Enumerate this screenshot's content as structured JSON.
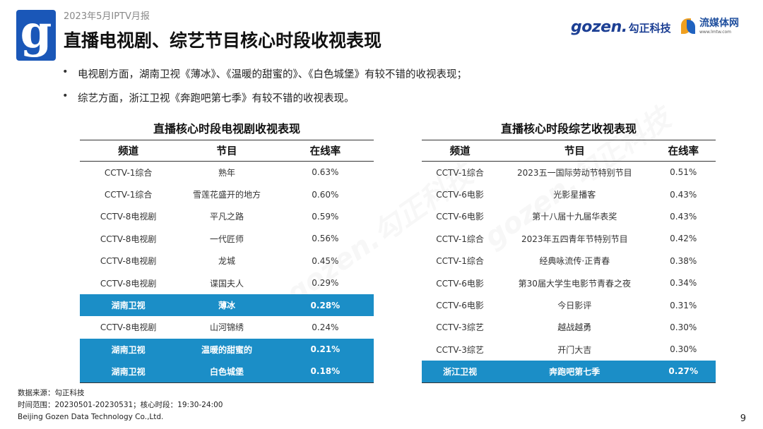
{
  "header": {
    "report_label": "2023年5月IPTV月报",
    "title": "直播电视剧、综艺节目核心时段收视表现",
    "logo_letter": "g",
    "brand_gozen_latin": "gozen.",
    "brand_gozen_cn": "勾正科技",
    "brand_lmtw_cn": "流媒体网",
    "brand_lmtw_url": "www.lmtw.com"
  },
  "bullets": [
    "电视剧方面，湖南卫视《薄冰》、《温暖的甜蜜的》、《白色城堡》有较不错的收视表现；",
    "综艺方面，浙江卫视《奔跑吧第七季》有较不错的收视表现。"
  ],
  "watermark": "gozen.勾正科技",
  "drama_table": {
    "title": "直播核心时段电视剧收视表现",
    "headers": [
      "频道",
      "节目",
      "在线率"
    ],
    "rows": [
      {
        "channel": "CCTV-1综合",
        "program": "熟年",
        "rate": "0.63%",
        "highlight": false
      },
      {
        "channel": "CCTV-1综合",
        "program": "雪莲花盛开的地方",
        "rate": "0.60%",
        "highlight": false
      },
      {
        "channel": "CCTV-8电视剧",
        "program": "平凡之路",
        "rate": "0.59%",
        "highlight": false
      },
      {
        "channel": "CCTV-8电视剧",
        "program": "一代匠师",
        "rate": "0.56%",
        "highlight": false
      },
      {
        "channel": "CCTV-8电视剧",
        "program": "龙城",
        "rate": "0.45%",
        "highlight": false
      },
      {
        "channel": "CCTV-8电视剧",
        "program": "谍国夫人",
        "rate": "0.29%",
        "highlight": false
      },
      {
        "channel": "湖南卫视",
        "program": "薄冰",
        "rate": "0.28%",
        "highlight": true
      },
      {
        "channel": "CCTV-8电视剧",
        "program": "山河锦绣",
        "rate": "0.24%",
        "highlight": false
      },
      {
        "channel": "湖南卫视",
        "program": "温暖的甜蜜的",
        "rate": "0.21%",
        "highlight": true
      },
      {
        "channel": "湖南卫视",
        "program": "白色城堡",
        "rate": "0.18%",
        "highlight": true
      }
    ]
  },
  "variety_table": {
    "title": "直播核心时段综艺收视表现",
    "headers": [
      "频道",
      "节目",
      "在线率"
    ],
    "rows": [
      {
        "channel": "CCTV-1综合",
        "program": "2023五一国际劳动节特别节目",
        "rate": "0.51%",
        "highlight": false
      },
      {
        "channel": "CCTV-6电影",
        "program": "光影星播客",
        "rate": "0.43%",
        "highlight": false
      },
      {
        "channel": "CCTV-6电影",
        "program": "第十八届十九届华表奖",
        "rate": "0.43%",
        "highlight": false
      },
      {
        "channel": "CCTV-1综合",
        "program": "2023年五四青年节特别节目",
        "rate": "0.42%",
        "highlight": false
      },
      {
        "channel": "CCTV-1综合",
        "program": "经典咏流传·正青春",
        "rate": "0.38%",
        "highlight": false
      },
      {
        "channel": "CCTV-6电影",
        "program": "第30届大学生电影节青春之夜",
        "rate": "0.34%",
        "highlight": false
      },
      {
        "channel": "CCTV-6电影",
        "program": "今日影评",
        "rate": "0.31%",
        "highlight": false
      },
      {
        "channel": "CCTV-3综艺",
        "program": "越战越勇",
        "rate": "0.30%",
        "highlight": false
      },
      {
        "channel": "CCTV-3综艺",
        "program": "开门大吉",
        "rate": "0.30%",
        "highlight": false
      },
      {
        "channel": "浙江卫视",
        "program": "奔跑吧第七季",
        "rate": "0.27%",
        "highlight": true
      }
    ]
  },
  "footer": {
    "source": "数据来源：勾正科技",
    "time_range": "时间范围：20230501-20230531；核心时段：19:30-24:00",
    "company": "Beijing Gozen Data Technology Co.,Ltd."
  },
  "page_number": "9"
}
